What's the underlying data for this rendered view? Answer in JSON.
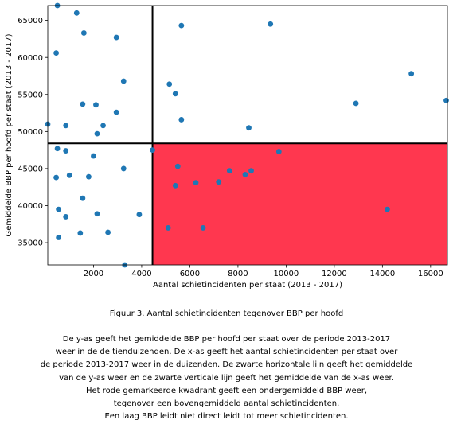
{
  "chart_data": {
    "type": "scatter",
    "xlabel": "Aantal schietincidenten per staat (2013 - 2017)",
    "ylabel": "Gemiddelde BBP per hoofd per staat (2013 - 2017)",
    "xlim": [
      100,
      16700
    ],
    "ylim": [
      32000,
      67000
    ],
    "x_ticks": [
      2000,
      4000,
      6000,
      8000,
      10000,
      12000,
      14000,
      16000
    ],
    "y_ticks": [
      35000,
      40000,
      45000,
      50000,
      55000,
      60000,
      65000
    ],
    "grid": false,
    "legend": "none",
    "point_color": "#1f77b4",
    "highlight_color": "#ff374f",
    "mean_x": 4450,
    "mean_y": 48400,
    "highlight_region": {
      "x": [
        4450,
        16700
      ],
      "y": [
        32000,
        48400
      ]
    },
    "points": [
      {
        "x": 500,
        "y": 67000
      },
      {
        "x": 1300,
        "y": 66000
      },
      {
        "x": 1600,
        "y": 63300
      },
      {
        "x": 2950,
        "y": 62700
      },
      {
        "x": 450,
        "y": 60600
      },
      {
        "x": 3250,
        "y": 56800
      },
      {
        "x": 1550,
        "y": 53700
      },
      {
        "x": 2100,
        "y": 53600
      },
      {
        "x": 2950,
        "y": 52600
      },
      {
        "x": 2400,
        "y": 50800
      },
      {
        "x": 2150,
        "y": 49700
      },
      {
        "x": 850,
        "y": 50800
      },
      {
        "x": 100,
        "y": 51000
      },
      {
        "x": 500,
        "y": 47700
      },
      {
        "x": 850,
        "y": 47400
      },
      {
        "x": 2000,
        "y": 46700
      },
      {
        "x": 4450,
        "y": 47500
      },
      {
        "x": 3250,
        "y": 45000
      },
      {
        "x": 1000,
        "y": 44100
      },
      {
        "x": 450,
        "y": 43800
      },
      {
        "x": 1800,
        "y": 43900
      },
      {
        "x": 1550,
        "y": 41000
      },
      {
        "x": 550,
        "y": 39500
      },
      {
        "x": 2150,
        "y": 38900
      },
      {
        "x": 3900,
        "y": 38800
      },
      {
        "x": 850,
        "y": 38500
      },
      {
        "x": 2600,
        "y": 36400
      },
      {
        "x": 1450,
        "y": 36300
      },
      {
        "x": 550,
        "y": 35700
      },
      {
        "x": 3300,
        "y": 32000
      },
      {
        "x": 5650,
        "y": 64300
      },
      {
        "x": 9350,
        "y": 64500
      },
      {
        "x": 15200,
        "y": 57800
      },
      {
        "x": 5150,
        "y": 56400
      },
      {
        "x": 5400,
        "y": 55100
      },
      {
        "x": 12900,
        "y": 53800
      },
      {
        "x": 16650,
        "y": 54200
      },
      {
        "x": 5650,
        "y": 51600
      },
      {
        "x": 8450,
        "y": 50500
      },
      {
        "x": 9700,
        "y": 47300
      },
      {
        "x": 5500,
        "y": 45300
      },
      {
        "x": 7650,
        "y": 44700
      },
      {
        "x": 8550,
        "y": 44700
      },
      {
        "x": 8300,
        "y": 44200
      },
      {
        "x": 7200,
        "y": 43200
      },
      {
        "x": 6250,
        "y": 43100
      },
      {
        "x": 5400,
        "y": 42700
      },
      {
        "x": 14200,
        "y": 39500
      },
      {
        "x": 5100,
        "y": 37000
      },
      {
        "x": 6550,
        "y": 37000
      }
    ]
  },
  "caption": {
    "title": "Figuur 3. Aantal schietincidenten tegenover BBP per hoofd",
    "lines": [
      "De y-as geeft het gemiddelde BBP per hoofd per staat over de periode 2013-2017",
      "weer in de de tienduizenden. De x-as geeft het aantal schietincidenten per staat over",
      "de periode 2013-2017 weer in de duizenden. De zwarte horizontale lijn geeft het gemiddelde",
      "van de y-as weer en de zwarte verticale lijn geeft het gemiddelde van de x-as weer.",
      "Het rode gemarkeerde kwadrant geeft een ondergemiddeld BBP weer,",
      "tegenover een bovengemiddeld aantal schietincidenten.",
      "Een laag BBP leidt niet direct leidt tot meer schietincidenten."
    ]
  }
}
